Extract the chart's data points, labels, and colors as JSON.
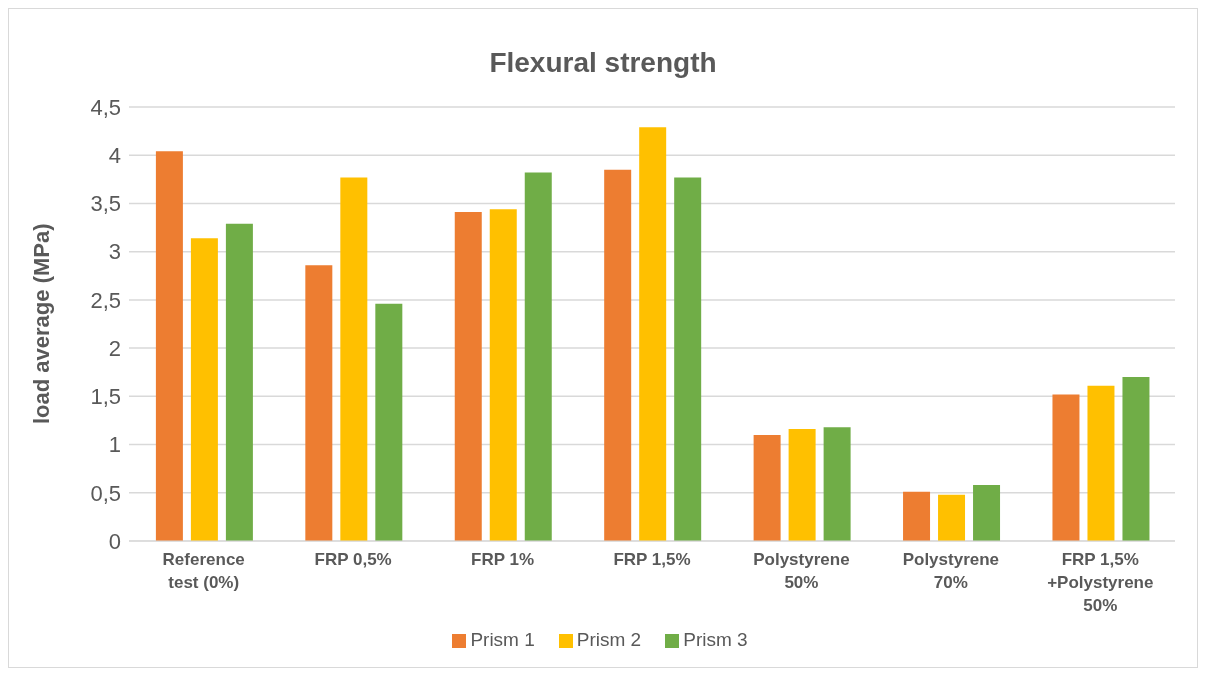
{
  "chart_data": {
    "type": "bar",
    "title": "Flexural strength",
    "ylabel": "load average (MPa)",
    "categories": [
      "Reference test (0%)",
      "FRP 0,5%",
      "FRP 1%",
      "FRP 1,5%",
      "Polystyrene 50%",
      "Polystyrene 70%",
      "FRP 1,5% +Polystyrene 50%"
    ],
    "series": [
      {
        "name": "Prism 1",
        "color": "#ed7d31",
        "values": [
          4.04,
          2.86,
          3.41,
          3.85,
          1.1,
          0.51,
          1.52
        ]
      },
      {
        "name": "Prism 2",
        "color": "#ffc000",
        "values": [
          3.14,
          3.77,
          3.44,
          4.29,
          1.16,
          0.48,
          1.61
        ]
      },
      {
        "name": "Prism 3",
        "color": "#70ad47",
        "values": [
          3.29,
          2.46,
          3.82,
          3.77,
          1.18,
          0.58,
          1.7
        ]
      }
    ],
    "ylim": [
      0,
      4.5
    ],
    "yticks": [
      0,
      {
        "value": 0.5,
        "label": "0,5"
      },
      1,
      {
        "value": 1.5,
        "label": "1,5"
      },
      2,
      {
        "value": 2.5,
        "label": "2,5"
      },
      3,
      {
        "value": 3.5,
        "label": "3,5"
      },
      4,
      {
        "value": 4.5,
        "label": "4,5"
      }
    ],
    "grid": "y",
    "legend": "bottom"
  }
}
